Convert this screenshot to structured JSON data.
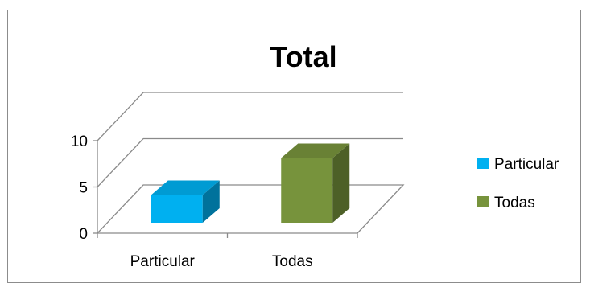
{
  "chart_data": {
    "type": "bar",
    "subtype": "3d-clustered-column",
    "title": "Total",
    "categories": [
      "Particular",
      "Todas"
    ],
    "series": [
      {
        "name": "Particular",
        "values": [
          3,
          0
        ],
        "color": "#00B0F0"
      },
      {
        "name": "Todas",
        "values": [
          0,
          7
        ],
        "color": "#77933C"
      }
    ],
    "ylim": [
      0,
      10
    ],
    "yticks": [
      0,
      5,
      10
    ],
    "grid": true,
    "legend": "right",
    "xlabel": "",
    "ylabel": ""
  }
}
